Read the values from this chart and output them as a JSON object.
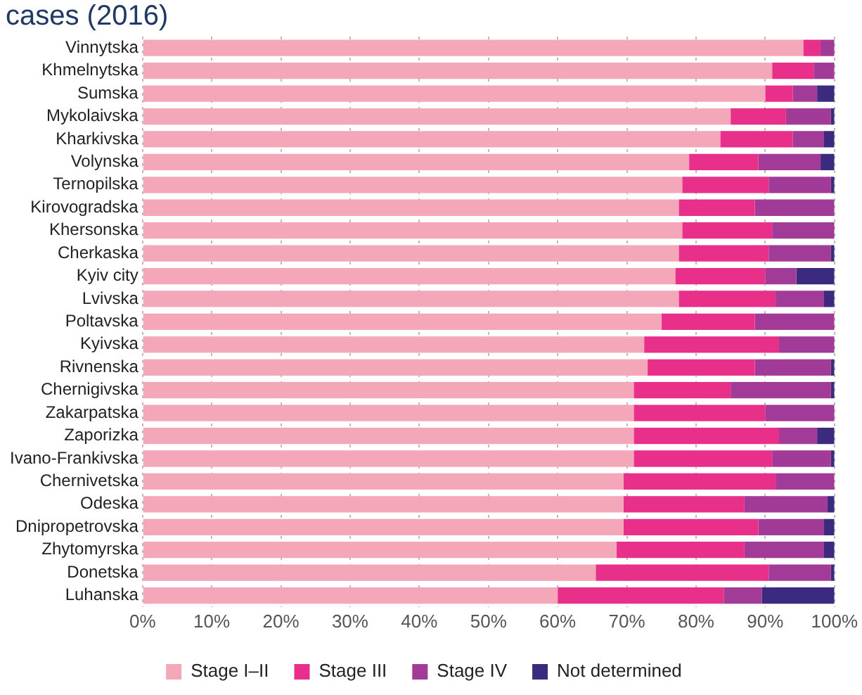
{
  "chart_data": {
    "type": "bar",
    "orientation": "horizontal",
    "stacked": true,
    "title": "cases (2016)",
    "categories": [
      "Vinnytska",
      "Khmelnytska",
      "Sumska",
      "Mykolaivska",
      "Kharkivska",
      "Volynska",
      "Ternopilska",
      "Kirovogradska",
      "Khersonska",
      "Cherkaska",
      "Kyiv city",
      "Lvivska",
      "Poltavska",
      "Kyivska",
      "Rivnenska",
      "Chernigivska",
      "Zakarpatska",
      "Zaporizka",
      "Ivano-Frankivska",
      "Chernivetska",
      "Odeska",
      "Dnipropetrovska",
      "Zhytomyrska",
      "Donetska",
      "Luhanska"
    ],
    "series": [
      {
        "name": "Stage I–II",
        "color": "#f4a7b9",
        "values": [
          95.5,
          91,
          90,
          85,
          83.5,
          79,
          78,
          77.5,
          78,
          77.5,
          77,
          77.5,
          75,
          72.5,
          73,
          71,
          71,
          71,
          71,
          69.5,
          69.5,
          69.5,
          68.5,
          65.5,
          60
        ]
      },
      {
        "name": "Stage III",
        "color": "#e8308a",
        "values": [
          2.5,
          6,
          4,
          8,
          10.5,
          10,
          12.5,
          11,
          13,
          13,
          13,
          14,
          13.5,
          19.5,
          15.5,
          14,
          19,
          21,
          20,
          22,
          17.5,
          19.5,
          18.5,
          25,
          24
        ]
      },
      {
        "name": "Stage IV",
        "color": "#a23b98",
        "values": [
          2,
          3,
          3.5,
          6.5,
          4.5,
          9,
          9,
          11.5,
          9,
          9,
          4.5,
          7,
          11.5,
          8,
          11,
          14.5,
          10,
          5.5,
          8.5,
          8.5,
          12,
          9.5,
          11.5,
          9,
          5.5
        ]
      },
      {
        "name": "Not determined",
        "color": "#3b2a7e",
        "values": [
          0,
          0,
          2.5,
          0.5,
          1.5,
          2,
          0.5,
          0,
          0,
          0.5,
          5.5,
          1.5,
          0,
          0,
          0.5,
          0.5,
          0,
          2.5,
          0.5,
          0,
          1,
          1.5,
          1.5,
          0.5,
          10.5
        ]
      }
    ],
    "xlim": [
      0,
      100
    ],
    "xticks": [
      {
        "value": 0,
        "label": "0%"
      },
      {
        "value": 10,
        "label": "10%"
      },
      {
        "value": 20,
        "label": "20%"
      },
      {
        "value": 30,
        "label": "30%"
      },
      {
        "value": 40,
        "label": "40%"
      },
      {
        "value": 50,
        "label": "50%"
      },
      {
        "value": 60,
        "label": "60%"
      },
      {
        "value": 70,
        "label": "70%"
      },
      {
        "value": 80,
        "label": "80%"
      },
      {
        "value": 90,
        "label": "90%"
      },
      {
        "value": 100,
        "label": "100%"
      }
    ],
    "grid": "x",
    "legend": "bottom"
  }
}
